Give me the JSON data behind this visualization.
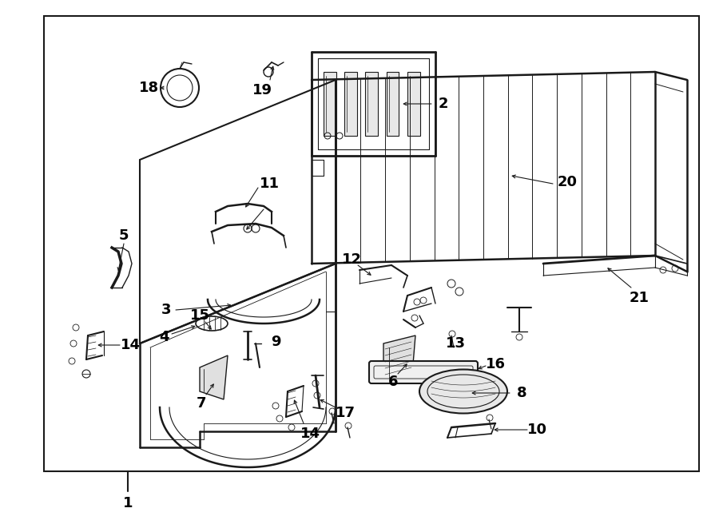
{
  "bg_color": "#ffffff",
  "line_color": "#1a1a1a",
  "text_color": "#000000",
  "figsize": [
    9.0,
    6.61
  ],
  "dpi": 100
}
